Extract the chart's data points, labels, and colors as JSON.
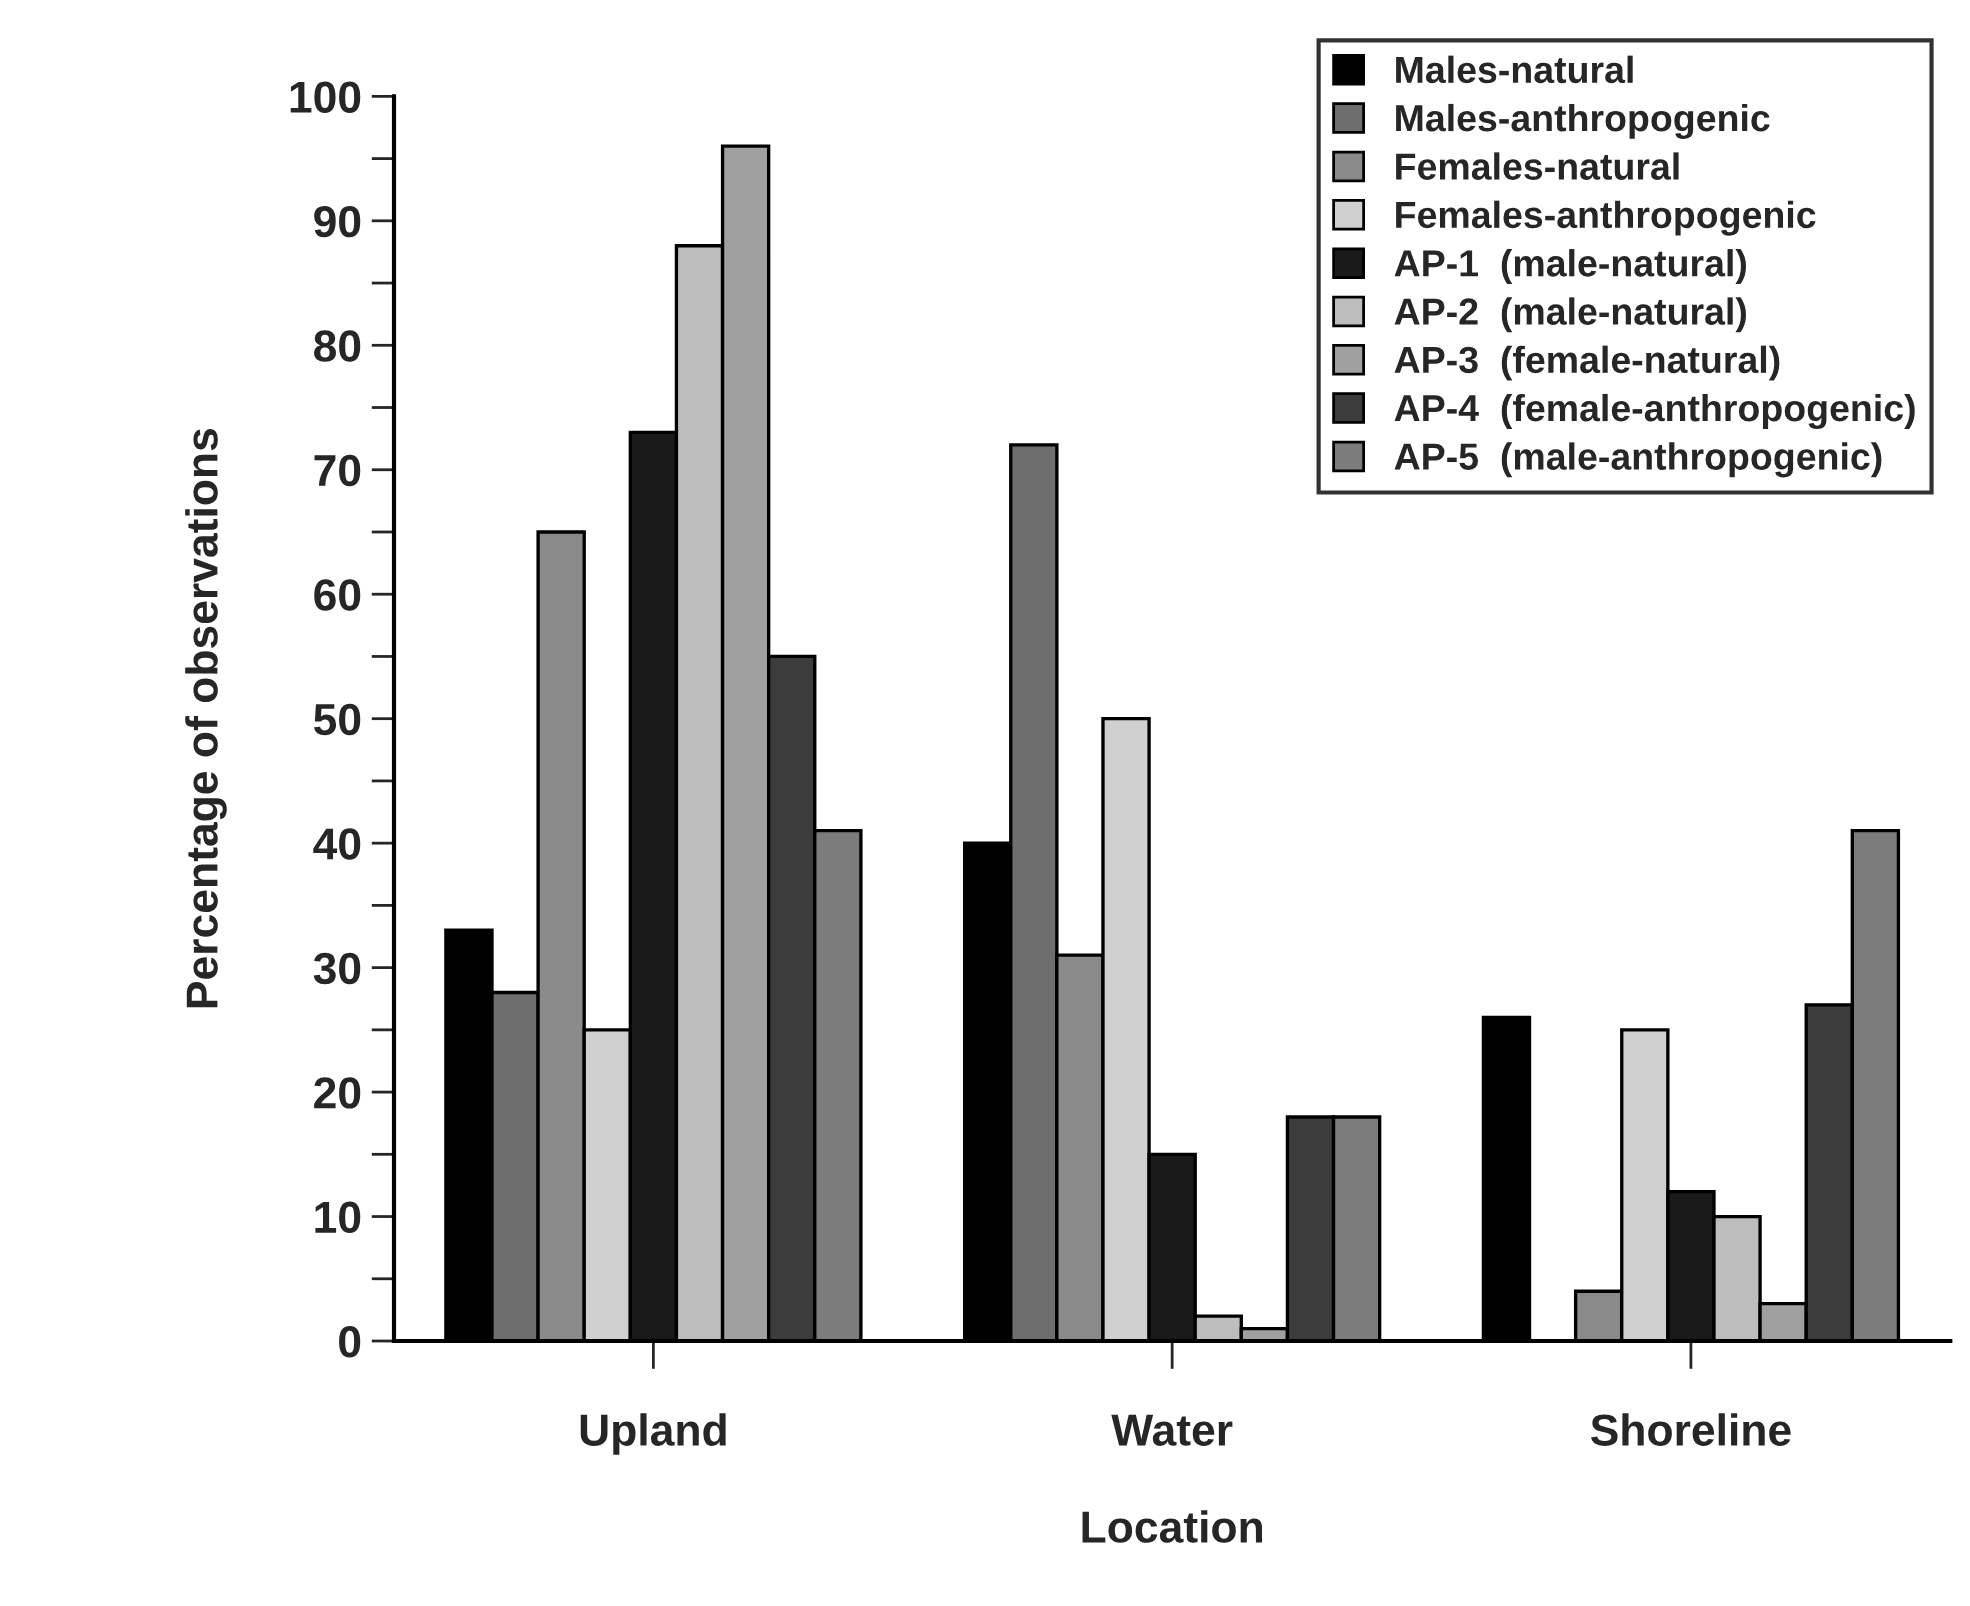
{
  "chart_data": {
    "type": "bar",
    "xlabel": "Location",
    "ylabel": "Percentage of observations",
    "categories": [
      "Upland",
      "Water",
      "Shoreline"
    ],
    "series": [
      {
        "name": "Males-natural",
        "color": "#000000",
        "values": [
          33,
          40,
          26
        ]
      },
      {
        "name": "Males-anthropogenic",
        "color": "#6e6e6e",
        "values": [
          28,
          72,
          null
        ]
      },
      {
        "name": "Females-natural",
        "color": "#8a8a8a",
        "values": [
          65,
          31,
          4
        ]
      },
      {
        "name": "Females-anthropogenic",
        "color": "#d0d0d0",
        "values": [
          25,
          50,
          25
        ]
      },
      {
        "name": "AP-1  (male-natural)",
        "color": "#1a1a1a",
        "values": [
          73,
          15,
          12
        ]
      },
      {
        "name": "AP-2  (male-natural)",
        "color": "#bdbdbd",
        "values": [
          88,
          2,
          10
        ]
      },
      {
        "name": "AP-3  (female-natural)",
        "color": "#a0a0a0",
        "values": [
          96,
          1,
          3
        ]
      },
      {
        "name": "AP-4  (female-anthropogenic)",
        "color": "#3c3c3c",
        "values": [
          55,
          18,
          27
        ]
      },
      {
        "name": "AP-5  (male-anthropogenic)",
        "color": "#7c7c7c",
        "values": [
          41,
          18,
          41
        ]
      }
    ],
    "ylim": [
      0,
      100
    ],
    "yticks": [
      0,
      {
        "value": 5,
        "label": null
      },
      10,
      {
        "value": 15,
        "label": null
      },
      20,
      {
        "value": 25,
        "label": null
      },
      30,
      {
        "value": 35,
        "label": null
      },
      40,
      {
        "value": 45,
        "label": null
      },
      50,
      {
        "value": 55,
        "label": null
      },
      60,
      {
        "value": 65,
        "label": null
      },
      70,
      {
        "value": 75,
        "label": null
      },
      80,
      {
        "value": 85,
        "label": null
      },
      90,
      {
        "value": 95,
        "label": null
      },
      100
    ],
    "grid": false,
    "legend": "top right"
  }
}
